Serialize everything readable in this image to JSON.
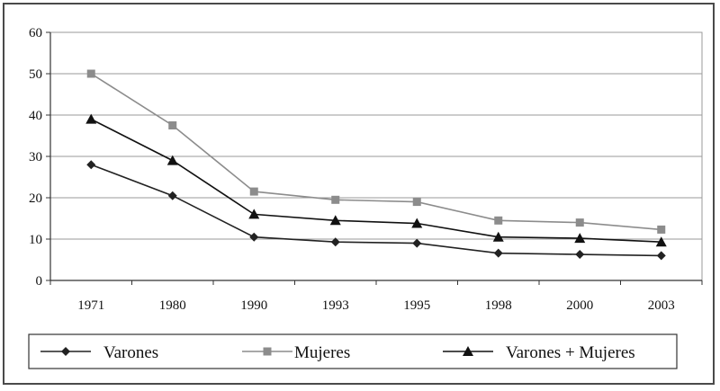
{
  "chart_data": {
    "type": "line",
    "categories": [
      "1971",
      "1980",
      "1990",
      "1993",
      "1995",
      "1998",
      "2000",
      "2003"
    ],
    "ylim": [
      0,
      60
    ],
    "yticks": [
      0,
      10,
      20,
      30,
      40,
      50,
      60
    ],
    "grid": true,
    "legend_position": "bottom",
    "series": [
      {
        "name": "Varones",
        "marker": "diamond",
        "color": "#222222",
        "values": [
          28,
          20.5,
          10.5,
          9.3,
          9.0,
          6.6,
          6.3,
          6.0
        ]
      },
      {
        "name": "Mujeres",
        "marker": "square",
        "color": "#8c8c8c",
        "values": [
          50,
          37.5,
          21.5,
          19.5,
          19.0,
          14.5,
          14.0,
          12.3
        ]
      },
      {
        "name": "Varones + Mujeres",
        "marker": "triangle",
        "color": "#111111",
        "values": [
          39,
          29,
          16,
          14.5,
          13.8,
          10.5,
          10.2,
          9.3
        ]
      }
    ]
  }
}
